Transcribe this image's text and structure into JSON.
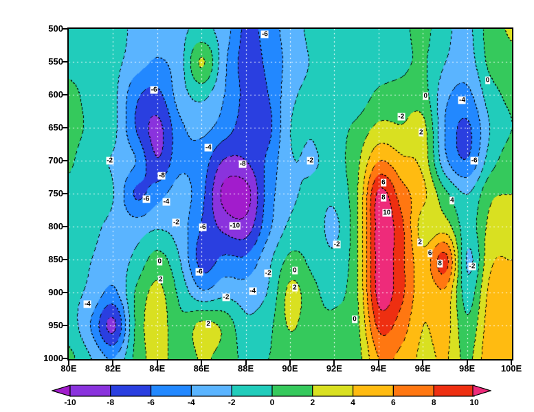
{
  "figure": {
    "background": "#ffffff",
    "grid_color": "#ffffff",
    "contour_line_color": "#000000"
  },
  "chart_data": {
    "type": "heatmap",
    "subtype": "filled-contour-cross-section",
    "title": "",
    "xlabel": "",
    "ylabel": "",
    "x_longitudes": [
      80,
      81,
      82,
      83,
      84,
      85,
      86,
      87,
      88,
      89,
      90,
      91,
      92,
      93,
      94,
      95,
      96,
      97,
      98,
      99,
      100
    ],
    "y_pressure_hpa": [
      500,
      550,
      600,
      650,
      700,
      750,
      800,
      850,
      900,
      950,
      1000
    ],
    "y_axis_inverted": true,
    "contour_interval": 2,
    "values": [
      [
        -0.5,
        -1.0,
        -1.2,
        -2.5,
        -3.5,
        -2.5,
        -1.5,
        -3.0,
        -6.5,
        -5.0,
        -3.0,
        -1.5,
        -1.0,
        -1.5,
        -1.0,
        -0.5,
        0.5,
        -1.5,
        -2.5,
        1.0,
        2.2
      ],
      [
        -0.8,
        -1.5,
        -1.5,
        -3.0,
        -4.2,
        -2.8,
        2.2,
        -3.5,
        -6.8,
        -5.5,
        -3.2,
        -1.8,
        -1.0,
        -1.8,
        -1.2,
        -0.5,
        0.2,
        -2.0,
        -3.0,
        0.5,
        1.5
      ],
      [
        0.8,
        -1.0,
        -1.5,
        -5.5,
        -6.5,
        -3.0,
        -1.5,
        -4.0,
        -6.5,
        -6.0,
        -2.5,
        -1.5,
        -0.8,
        -1.2,
        0.5,
        0.8,
        0.8,
        -3.5,
        -4.5,
        -1.0,
        0.5
      ],
      [
        0.8,
        -0.5,
        -1.5,
        -6.0,
        -8.5,
        -4.5,
        -3.5,
        -5.0,
        -7.0,
        -6.5,
        -2.0,
        -1.8,
        -0.8,
        0.5,
        2.5,
        2.2,
        2.6,
        -4.2,
        -6.3,
        -2.0,
        0.0
      ],
      [
        0.3,
        -1.5,
        -2.2,
        -4.0,
        -7.8,
        -4.5,
        -5.0,
        -8.2,
        -8.0,
        -5.5,
        -2.2,
        -2.2,
        -1.0,
        1.5,
        6.0,
        4.5,
        3.2,
        -3.5,
        -5.8,
        -1.0,
        1.0
      ],
      [
        -0.5,
        -1.2,
        -2.0,
        -6.2,
        -4.8,
        -3.2,
        -5.5,
        -10.6,
        -10.8,
        -5.0,
        -2.5,
        -1.5,
        -1.5,
        1.8,
        10.5,
        7.0,
        4.5,
        0.5,
        -2.0,
        1.5,
        2.0
      ],
      [
        -0.5,
        -1.5,
        -2.5,
        -3.0,
        -2.2,
        -3.0,
        -6.2,
        -8.5,
        -9.0,
        -4.5,
        -1.5,
        -1.0,
        -2.4,
        1.8,
        11.0,
        8.5,
        2.9,
        3.0,
        -1.0,
        2.5,
        3.0
      ],
      [
        -1.0,
        -2.0,
        -3.0,
        -1.5,
        0.8,
        -2.0,
        -6.8,
        -5.5,
        -5.5,
        -2.5,
        0.5,
        -0.5,
        -1.5,
        1.8,
        11.0,
        8.5,
        4.8,
        8.7,
        -2.3,
        3.5,
        4.0
      ],
      [
        -1.5,
        -2.5,
        -4.5,
        0.2,
        2.5,
        -0.5,
        -3.5,
        -2.5,
        -3.0,
        -1.8,
        2.6,
        0.5,
        -0.5,
        1.8,
        10.8,
        8.5,
        4.5,
        5.5,
        -1.0,
        4.5,
        4.5
      ],
      [
        -1.0,
        -4.2,
        -8.4,
        0.3,
        3.0,
        0.5,
        2.6,
        1.5,
        -1.5,
        -0.5,
        2.2,
        0.5,
        0.5,
        1.5,
        8.5,
        7.0,
        4.0,
        4.8,
        0.5,
        5.0,
        5.0
      ],
      [
        0.5,
        -2.0,
        -4.0,
        0.5,
        2.8,
        0.8,
        2.2,
        1.2,
        -0.5,
        0.0,
        0.5,
        0.2,
        0.8,
        1.2,
        6.0,
        5.5,
        3.5,
        4.2,
        1.5,
        5.5,
        5.5
      ]
    ],
    "bin_edges": [
      -10,
      -8,
      -6,
      -4,
      -2,
      0,
      2,
      4,
      6,
      8,
      10
    ],
    "colors": [
      "#a21ccc",
      "#8a33dd",
      "#2a3fe0",
      "#2288ff",
      "#5ab4ff",
      "#21ccbb",
      "#35c95c",
      "#d9e021",
      "#ffbb11",
      "#ff7711",
      "#ee2f11",
      "#ee2b7a"
    ],
    "x_ticks": [
      "80E",
      "82E",
      "84E",
      "86E",
      "88E",
      "90E",
      "92E",
      "94E",
      "96E",
      "98E",
      "100E"
    ],
    "y_ticks": [
      "500",
      "550",
      "600",
      "650",
      "700",
      "750",
      "800",
      "850",
      "900",
      "950",
      "1000"
    ],
    "grid_lon_lines": [
      82,
      84,
      86,
      88,
      90,
      92,
      94,
      96,
      98
    ],
    "grid_pressure_lines": [
      550,
      600,
      650,
      700,
      750,
      800,
      850,
      900,
      950
    ],
    "contour_labels": [
      {
        "t": "-6",
        "lon": 88.85,
        "p": 508
      },
      {
        "t": "-6",
        "lon": 83.85,
        "p": 592
      },
      {
        "t": "0",
        "lon": 96.1,
        "p": 602
      },
      {
        "t": "-4",
        "lon": 97.75,
        "p": 608
      },
      {
        "t": "0",
        "lon": 98.9,
        "p": 578
      },
      {
        "t": "-2",
        "lon": 95.0,
        "p": 633
      },
      {
        "t": "2",
        "lon": 95.9,
        "p": 657
      },
      {
        "t": "-4",
        "lon": 86.3,
        "p": 680
      },
      {
        "t": "-2",
        "lon": 90.9,
        "p": 700
      },
      {
        "t": "-2",
        "lon": 81.85,
        "p": 700
      },
      {
        "t": "-8",
        "lon": 84.2,
        "p": 722
      },
      {
        "t": "-8",
        "lon": 87.85,
        "p": 705
      },
      {
        "t": "-6",
        "lon": 98.3,
        "p": 700
      },
      {
        "t": "-6",
        "lon": 83.5,
        "p": 758
      },
      {
        "t": "-4",
        "lon": 84.4,
        "p": 762
      },
      {
        "t": "-2",
        "lon": 84.85,
        "p": 793
      },
      {
        "t": "-10",
        "lon": 87.5,
        "p": 798
      },
      {
        "t": "-6",
        "lon": 86.05,
        "p": 800
      },
      {
        "t": "-6",
        "lon": 85.9,
        "p": 868
      },
      {
        "t": "6",
        "lon": 94.2,
        "p": 733
      },
      {
        "t": "8",
        "lon": 94.2,
        "p": 756
      },
      {
        "t": "10",
        "lon": 94.35,
        "p": 779
      },
      {
        "t": "4",
        "lon": 97.3,
        "p": 760
      },
      {
        "t": "2",
        "lon": 95.85,
        "p": 823
      },
      {
        "t": "6",
        "lon": 96.3,
        "p": 840
      },
      {
        "t": "8",
        "lon": 96.75,
        "p": 855
      },
      {
        "t": "-2",
        "lon": 98.2,
        "p": 860
      },
      {
        "t": "-4",
        "lon": 88.3,
        "p": 897
      },
      {
        "t": "-2",
        "lon": 89.0,
        "p": 870
      },
      {
        "t": "0",
        "lon": 90.2,
        "p": 866
      },
      {
        "t": "2",
        "lon": 90.2,
        "p": 892
      },
      {
        "t": "0",
        "lon": 84.1,
        "p": 852
      },
      {
        "t": "2",
        "lon": 84.15,
        "p": 879
      },
      {
        "t": "-4",
        "lon": 80.85,
        "p": 917
      },
      {
        "t": "2",
        "lon": 86.3,
        "p": 947
      },
      {
        "t": "-2",
        "lon": 87.1,
        "p": 906
      },
      {
        "t": "-2",
        "lon": 92.1,
        "p": 826
      },
      {
        "t": "0",
        "lon": 92.9,
        "p": 940
      }
    ],
    "colorbar": {
      "tick_labels": [
        "-10",
        "-8",
        "-6",
        "-4",
        "-2",
        "0",
        "2",
        "4",
        "6",
        "8",
        "10"
      ],
      "orientation": "horizontal",
      "arrow_ends": true
    }
  }
}
